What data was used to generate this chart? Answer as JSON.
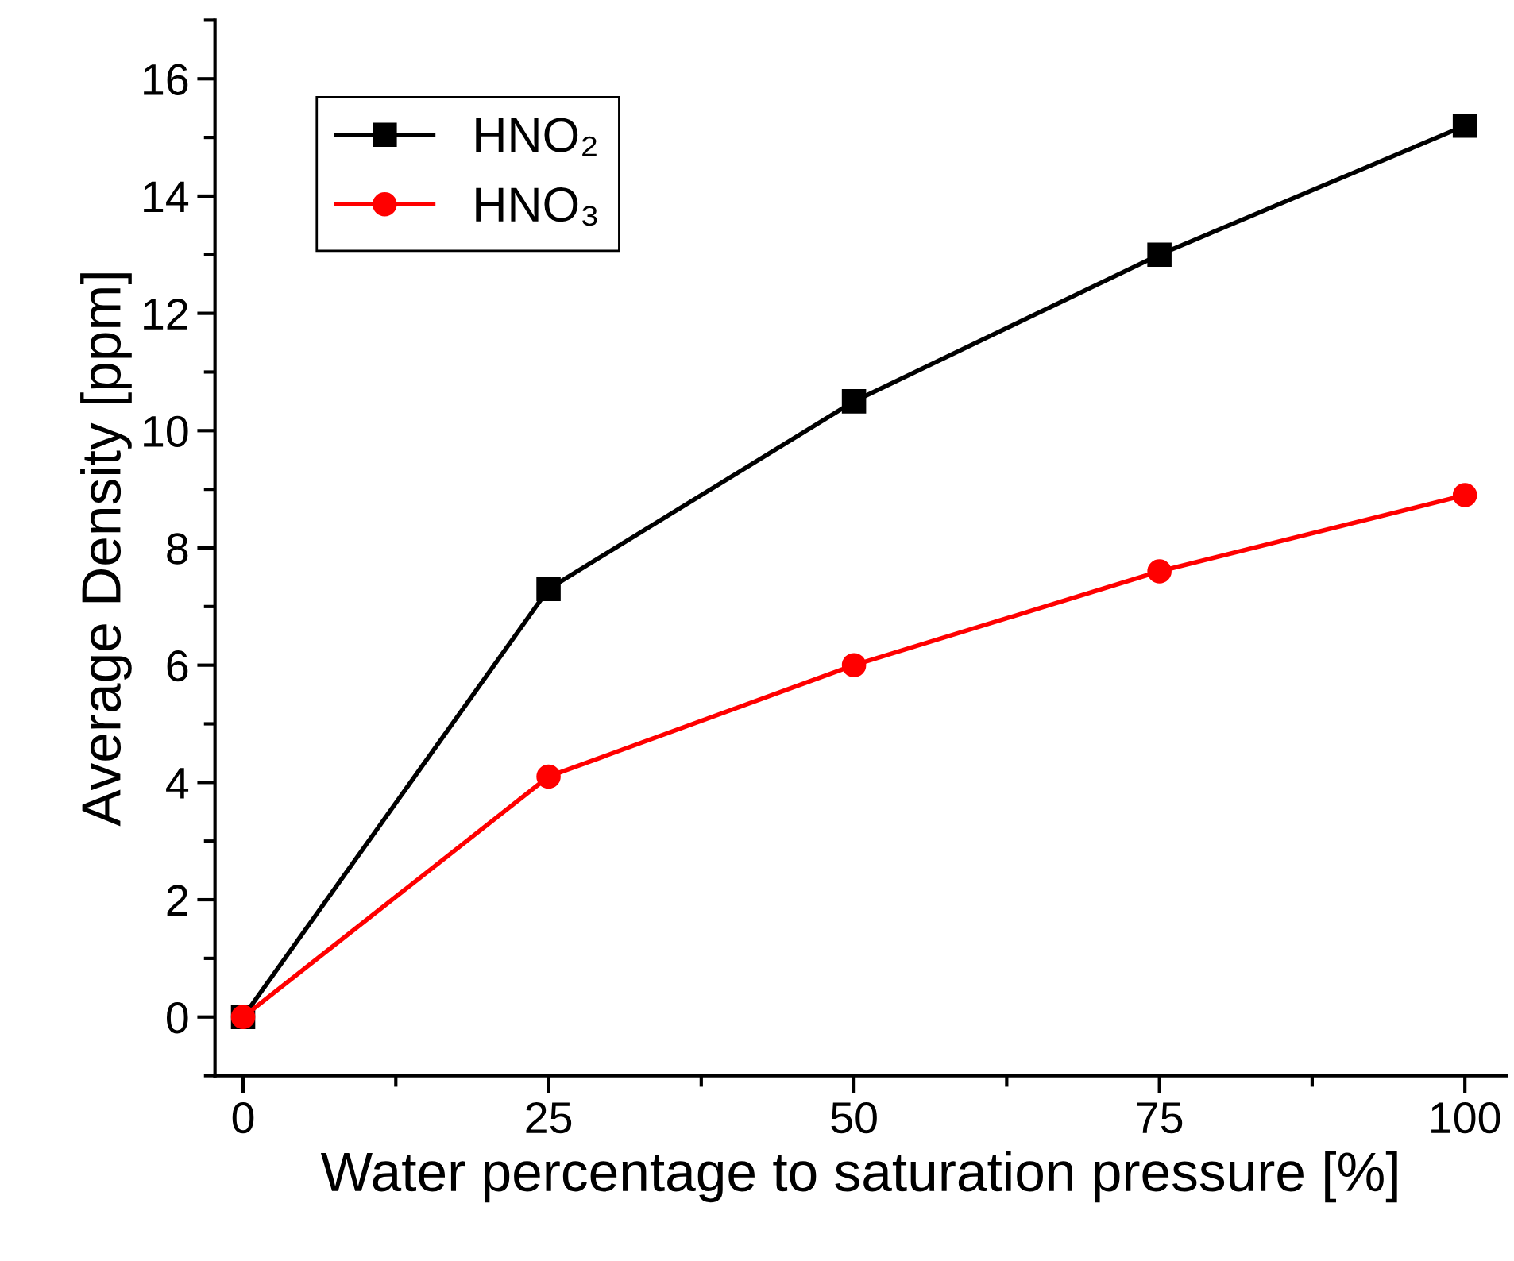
{
  "chart_data": {
    "type": "line",
    "xlabel": "Water percentage to saturation pressure [%]",
    "ylabel": "Average Density [ppm]",
    "x": [
      0,
      25,
      50,
      75,
      100
    ],
    "series": [
      {
        "name": "HNO₂",
        "color": "#000000",
        "marker": "square",
        "values": [
          0,
          7.3,
          10.5,
          13.0,
          15.2
        ]
      },
      {
        "name": "HNO₃",
        "color": "#ff0000",
        "marker": "circle",
        "values": [
          0,
          4.1,
          6.0,
          7.6,
          8.9
        ]
      }
    ],
    "xlim": [
      -2.3,
      103.4
    ],
    "xticks": [
      0,
      25,
      50,
      75,
      100
    ],
    "ylim": [
      -1,
      17
    ],
    "yticks": [
      0,
      2,
      4,
      6,
      8,
      10,
      12,
      14,
      16
    ],
    "grid": false,
    "legend": "top left",
    "line_style": "solid"
  }
}
